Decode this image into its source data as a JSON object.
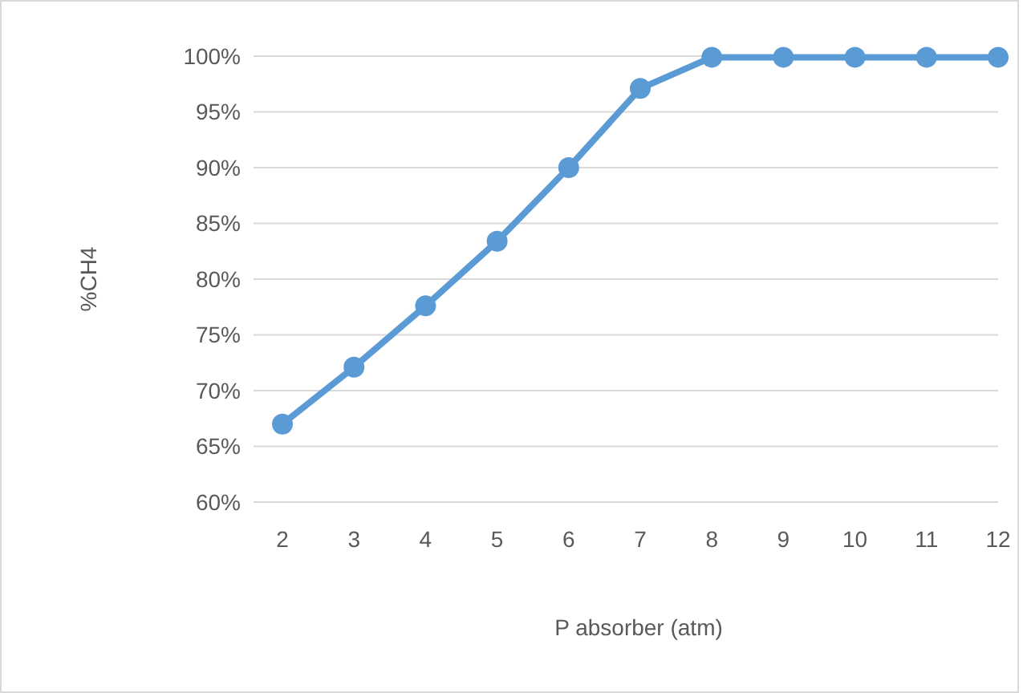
{
  "chart_data": {
    "type": "line",
    "xlabel": "P absorber (atm)",
    "ylabel": "%CH4",
    "categories": [
      "2",
      "3",
      "4",
      "5",
      "6",
      "7",
      "8",
      "9",
      "10",
      "11",
      "12"
    ],
    "series": [
      {
        "color": "#5b9bd5",
        "values": [
          67.0,
          72.1,
          77.6,
          83.4,
          90.0,
          97.1,
          99.9,
          99.9,
          99.9,
          99.9,
          99.9
        ]
      }
    ],
    "ylim": [
      60,
      100
    ],
    "yticks": [
      {
        "value": 60,
        "label": "60%"
      },
      {
        "value": 65,
        "label": "65%"
      },
      {
        "value": 70,
        "label": "70%"
      },
      {
        "value": 75,
        "label": "75%"
      },
      {
        "value": 80,
        "label": "80%"
      },
      {
        "value": 85,
        "label": "85%"
      },
      {
        "value": 90,
        "label": "90%"
      },
      {
        "value": 95,
        "label": "95%"
      },
      {
        "value": 100,
        "label": "100%"
      }
    ],
    "grid": "y",
    "marker": "circle",
    "line_style": "solid"
  }
}
